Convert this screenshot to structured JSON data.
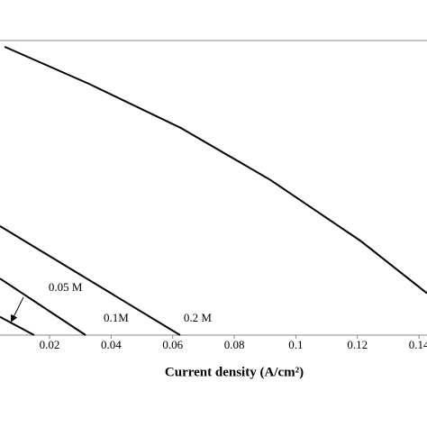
{
  "chart_data": {
    "type": "line",
    "x_label": "Current density (A/cm²)",
    "xlim": [
      0.0039,
      0.1426
    ],
    "ylim": [
      0,
      1
    ],
    "xticks": [
      0.02,
      0.04,
      0.06,
      0.08,
      0.1,
      0.12,
      0.14
    ],
    "series": [
      {
        "color": "#000000",
        "x": [
          0.0054,
          0.033,
          0.0625,
          0.0917,
          0.121,
          0.1426
        ],
        "values": [
          0.979,
          0.852,
          0.704,
          0.527,
          0.32,
          0.142
        ]
      },
      {
        "name": "0.2 M",
        "color": "#000000",
        "x": [
          0.0039,
          0.0624
        ],
        "values": [
          0.37,
          0
        ]
      },
      {
        "name": "0.1M",
        "color": "#000000",
        "x": [
          0.0039,
          0.0317
        ],
        "values": [
          0.192,
          0
        ]
      },
      {
        "name": "0.05 M",
        "color": "#000000",
        "x": [
          0.0039,
          0.015
        ],
        "values": [
          0.062,
          0
        ]
      }
    ]
  }
}
